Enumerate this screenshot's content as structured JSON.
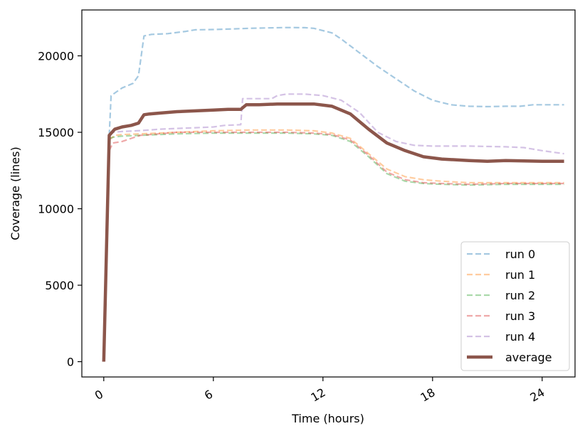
{
  "chart_data": {
    "type": "line",
    "xlabel": "Time (hours)",
    "ylabel": "Coverage (lines)",
    "xlim": [
      -1.2,
      25.8
    ],
    "ylim": [
      -1000,
      23000
    ],
    "xticks": [
      0,
      6,
      12,
      18,
      24
    ],
    "yticks": [
      0,
      5000,
      10000,
      15000,
      20000
    ],
    "grid": false,
    "legend_position": "lower-right",
    "series": [
      {
        "name": "run 0",
        "color": "#1f77b4",
        "style": "dashed",
        "x": [
          0.3,
          0.4,
          1.0,
          1.6,
          1.9,
          2.2,
          2.6,
          3.5,
          4.5,
          5.0,
          6.0,
          7.0,
          8.0,
          9.0,
          10.0,
          11.0,
          11.5,
          12.5,
          13.0,
          14.0,
          15.0,
          16.0,
          17.0,
          18.0,
          19.0,
          20.0,
          21.0,
          22.0,
          22.8,
          23.5,
          24.0,
          25.2
        ],
        "y": [
          14800,
          17400,
          17900,
          18200,
          18700,
          21300,
          21400,
          21450,
          21600,
          21700,
          21720,
          21760,
          21800,
          21830,
          21850,
          21840,
          21800,
          21500,
          21100,
          20200,
          19300,
          18500,
          17700,
          17100,
          16800,
          16700,
          16680,
          16700,
          16700,
          16800,
          16800,
          16800
        ]
      },
      {
        "name": "run 1",
        "color": "#ff7f0e",
        "style": "dashed",
        "x": [
          0.3,
          0.6,
          1.0,
          2.0,
          3.0,
          4.0,
          5.0,
          6.0,
          8.0,
          10.0,
          11.5,
          12.5,
          13.5,
          14.5,
          15.5,
          16.5,
          17.5,
          18.5,
          20.0,
          22.0,
          24.0,
          25.2
        ],
        "y": [
          14500,
          14800,
          14850,
          14900,
          14950,
          15000,
          15050,
          15100,
          15150,
          15150,
          15100,
          14950,
          14600,
          13600,
          12600,
          12100,
          11900,
          11800,
          11700,
          11700,
          11700,
          11700
        ]
      },
      {
        "name": "run 2",
        "color": "#2ca02c",
        "style": "dashed",
        "x": [
          0.3,
          0.6,
          1.0,
          2.0,
          3.0,
          4.0,
          6.0,
          8.0,
          10.0,
          11.5,
          12.5,
          13.5,
          14.5,
          15.5,
          16.5,
          17.5,
          18.5,
          20.0,
          22.0,
          24.0,
          25.2
        ],
        "y": [
          14600,
          14700,
          14750,
          14800,
          14850,
          14900,
          14950,
          14950,
          14950,
          14900,
          14800,
          14400,
          13400,
          12300,
          11800,
          11650,
          11600,
          11550,
          11600,
          11600,
          11600
        ]
      },
      {
        "name": "run 3",
        "color": "#d62728",
        "style": "dashed",
        "x": [
          0.3,
          0.5,
          1.0,
          2.0,
          3.0,
          4.0,
          6.0,
          8.0,
          10.0,
          11.5,
          12.5,
          13.5,
          14.5,
          15.5,
          16.5,
          17.5,
          18.5,
          20.0,
          22.0,
          24.0,
          25.2
        ],
        "y": [
          13800,
          14300,
          14400,
          14800,
          14900,
          15000,
          15000,
          15000,
          15000,
          14950,
          14850,
          14500,
          13500,
          12400,
          11900,
          11700,
          11650,
          11600,
          11650,
          11650,
          11650
        ]
      },
      {
        "name": "run 4",
        "color": "#9467bd",
        "style": "dashed",
        "x": [
          0.3,
          0.5,
          1.0,
          1.8,
          2.5,
          3.0,
          4.0,
          5.0,
          6.0,
          6.6,
          7.5,
          7.6,
          8.5,
          9.2,
          9.5,
          10.0,
          11.0,
          12.0,
          13.0,
          14.0,
          15.0,
          16.0,
          17.0,
          18.0,
          20.0,
          22.0,
          23.0,
          24.0,
          25.2
        ],
        "y": [
          14900,
          15000,
          15050,
          15100,
          15150,
          15200,
          15250,
          15300,
          15350,
          15450,
          15500,
          17200,
          17200,
          17200,
          17400,
          17500,
          17500,
          17400,
          17100,
          16300,
          15000,
          14400,
          14150,
          14100,
          14100,
          14050,
          14000,
          13800,
          13600
        ]
      },
      {
        "name": "average",
        "color": "#8c564b",
        "style": "solid",
        "x": [
          0.0,
          0.3,
          0.6,
          1.0,
          1.5,
          1.9,
          2.2,
          2.5,
          3.0,
          4.0,
          5.0,
          6.0,
          6.8,
          7.5,
          7.8,
          8.5,
          9.5,
          10.5,
          11.5,
          12.5,
          13.5,
          14.5,
          15.5,
          16.5,
          17.5,
          18.5,
          20.0,
          21.0,
          22.0,
          24.0,
          25.2
        ],
        "y": [
          0,
          14800,
          15200,
          15350,
          15450,
          15600,
          16150,
          16200,
          16250,
          16350,
          16400,
          16450,
          16500,
          16500,
          16800,
          16800,
          16850,
          16850,
          16850,
          16700,
          16200,
          15200,
          14300,
          13800,
          13400,
          13250,
          13150,
          13100,
          13150,
          13100,
          13100
        ]
      }
    ]
  }
}
